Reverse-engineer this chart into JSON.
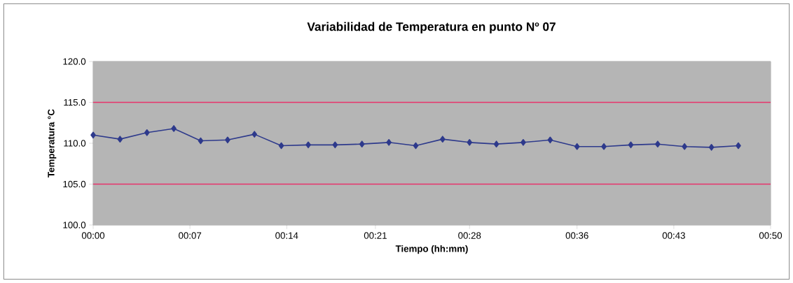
{
  "chart_data": {
    "type": "line",
    "title": "Variabilidad de Temperatura en punto Nº 07",
    "xlabel": "Tiempo  (hh:mm)",
    "ylabel": "Temperatura °C",
    "x": [
      0,
      0.0333,
      0.0667,
      0.1,
      0.1333,
      0.1667,
      0.2,
      0.2333,
      0.2667,
      0.3,
      0.3333,
      0.3667,
      0.4,
      0.4333,
      0.4667,
      0.5,
      0.5333,
      0.5667,
      0.6,
      0.6333,
      0.6667,
      0.7,
      0.7333,
      0.7667,
      0.8
    ],
    "series": [
      {
        "color": "#2e3a8c",
        "values": [
          111.0,
          110.5,
          111.3,
          111.8,
          110.3,
          110.4,
          111.1,
          109.7,
          109.8,
          109.8,
          109.9,
          110.1,
          109.7,
          110.5,
          110.1,
          109.9,
          110.1,
          110.4,
          109.6,
          109.6,
          109.8,
          109.9,
          109.6,
          109.5,
          109.7
        ]
      }
    ],
    "xlim": [
      0,
      0.84
    ],
    "ylim": [
      100,
      120
    ],
    "xticks": [
      {
        "value": 0,
        "label": "00:00"
      },
      {
        "value": 0.12,
        "label": "00:07"
      },
      {
        "value": 0.24,
        "label": "00:14"
      },
      {
        "value": 0.35,
        "label": "00:21"
      },
      {
        "value": 0.4667,
        "label": "00:28"
      },
      {
        "value": 0.6,
        "label": "00:36"
      },
      {
        "value": 0.72,
        "label": "00:43"
      },
      {
        "value": 0.84,
        "label": "00:50"
      }
    ],
    "yticks": [
      {
        "value": 100,
        "label": "100.0"
      },
      {
        "value": 105,
        "label": "105.0"
      },
      {
        "value": 110,
        "label": "110.0"
      },
      {
        "value": 115,
        "label": "115.0"
      },
      {
        "value": 120,
        "label": "120.0"
      }
    ],
    "ref_lines": [
      {
        "axis": "y",
        "value": 115,
        "color": "#e8336b"
      },
      {
        "axis": "y",
        "value": 105,
        "color": "#e8336b"
      }
    ],
    "marker": "diamond",
    "line_style": "solid"
  }
}
